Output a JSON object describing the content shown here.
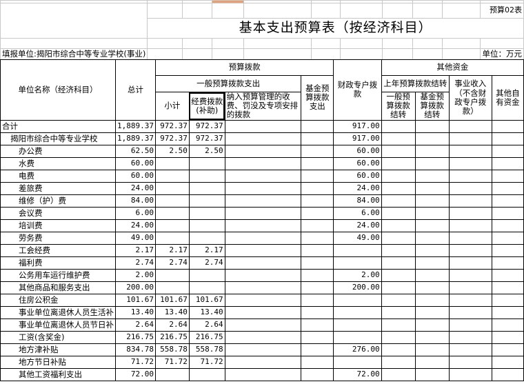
{
  "form_code": "预算02表",
  "title": "基本支出预算表（按经济科目）",
  "reporting_unit": "填报单位:揭阳市综合中等专业学校(事业)",
  "unit": "单位：万元",
  "headers": {
    "name": "单位名称（经济科目）",
    "total": "总计",
    "budget_allocation": "预算拨款",
    "general_budget": "一般预算拨款支出",
    "subtotal": "小计",
    "funding_subsidy": "经费拨款(补助)",
    "included_fees": "纳入预算管理的收费、罚没及专项安排的拨款",
    "fund_budget": "基金预算拨款支出",
    "fiscal_special": "财政专户拨款",
    "other_funds": "其他资金",
    "prior_year": "上年预算拨款结转",
    "general_carryover": "一般预算拨款结转",
    "fund_carryover": "基金预算拨款结转",
    "business_income": "事业收入（不含财政专户拨款）",
    "other_own": "其他自有资金"
  },
  "rows": [
    {
      "name": "合计",
      "level": 0,
      "cells": [
        "1,889.37",
        "972.37",
        "972.37",
        "",
        "",
        "917.00",
        "",
        "",
        "",
        ""
      ]
    },
    {
      "name": "揭阳市综合中等专业学校",
      "level": 1,
      "cells": [
        "1,889.37",
        "972.37",
        "972.37",
        "",
        "",
        "917.00",
        "",
        "",
        "",
        ""
      ]
    },
    {
      "name": "办公费",
      "level": 2,
      "cells": [
        "62.50",
        "2.50",
        "2.50",
        "",
        "",
        "60.00",
        "",
        "",
        "",
        ""
      ]
    },
    {
      "name": "水费",
      "level": 2,
      "cells": [
        "60.00",
        "",
        "",
        "",
        "",
        "60.00",
        "",
        "",
        "",
        ""
      ]
    },
    {
      "name": "电费",
      "level": 2,
      "cells": [
        "60.00",
        "",
        "",
        "",
        "",
        "60.00",
        "",
        "",
        "",
        ""
      ]
    },
    {
      "name": "差旅费",
      "level": 2,
      "cells": [
        "24.00",
        "",
        "",
        "",
        "",
        "24.00",
        "",
        "",
        "",
        ""
      ]
    },
    {
      "name": "维修（护）费",
      "level": 2,
      "cells": [
        "84.00",
        "",
        "",
        "",
        "",
        "84.00",
        "",
        "",
        "",
        ""
      ]
    },
    {
      "name": "会议费",
      "level": 2,
      "cells": [
        "6.00",
        "",
        "",
        "",
        "",
        "6.00",
        "",
        "",
        "",
        ""
      ]
    },
    {
      "name": "培训费",
      "level": 2,
      "cells": [
        "24.00",
        "",
        "",
        "",
        "",
        "24.00",
        "",
        "",
        "",
        ""
      ]
    },
    {
      "name": "劳务费",
      "level": 2,
      "cells": [
        "49.00",
        "",
        "",
        "",
        "",
        "49.00",
        "",
        "",
        "",
        ""
      ]
    },
    {
      "name": "工会经费",
      "level": 2,
      "cells": [
        "2.17",
        "2.17",
        "2.17",
        "",
        "",
        "",
        "",
        "",
        "",
        ""
      ]
    },
    {
      "name": "福利费",
      "level": 2,
      "cells": [
        "2.74",
        "2.74",
        "2.74",
        "",
        "",
        "",
        "",
        "",
        "",
        ""
      ]
    },
    {
      "name": "公务用车运行维护费",
      "level": 2,
      "cells": [
        "2.00",
        "",
        "",
        "",
        "",
        "2.00",
        "",
        "",
        "",
        ""
      ]
    },
    {
      "name": "其他商品和服务支出",
      "level": 2,
      "cells": [
        "200.00",
        "",
        "",
        "",
        "",
        "200.00",
        "",
        "",
        "",
        ""
      ]
    },
    {
      "name": "住房公积金",
      "level": 2,
      "cells": [
        "101.67",
        "101.67",
        "101.67",
        "",
        "",
        "",
        "",
        "",
        "",
        ""
      ]
    },
    {
      "name": "事业单位离退休人员生活补",
      "level": 2,
      "cells": [
        "13.40",
        "13.40",
        "13.40",
        "",
        "",
        "",
        "",
        "",
        "",
        ""
      ]
    },
    {
      "name": "事业单位离退休人员节日补",
      "level": 2,
      "cells": [
        "2.64",
        "2.64",
        "2.64",
        "",
        "",
        "",
        "",
        "",
        "",
        ""
      ]
    },
    {
      "name": "工资(含奖金)",
      "level": 2,
      "cells": [
        "216.75",
        "216.75",
        "216.75",
        "",
        "",
        "",
        "",
        "",
        "",
        ""
      ]
    },
    {
      "name": "地方津补贴",
      "level": 2,
      "cells": [
        "834.78",
        "558.78",
        "558.78",
        "",
        "",
        "276.00",
        "",
        "",
        "",
        ""
      ]
    },
    {
      "name": "地方节日补贴",
      "level": 2,
      "cells": [
        "71.72",
        "71.72",
        "71.72",
        "",
        "",
        "",
        "",
        "",
        "",
        ""
      ]
    },
    {
      "name": "其他工资福利支出",
      "level": 2,
      "cells": [
        "72.00",
        "",
        "",
        "",
        "",
        "72.00",
        "",
        "",
        "",
        ""
      ]
    }
  ]
}
